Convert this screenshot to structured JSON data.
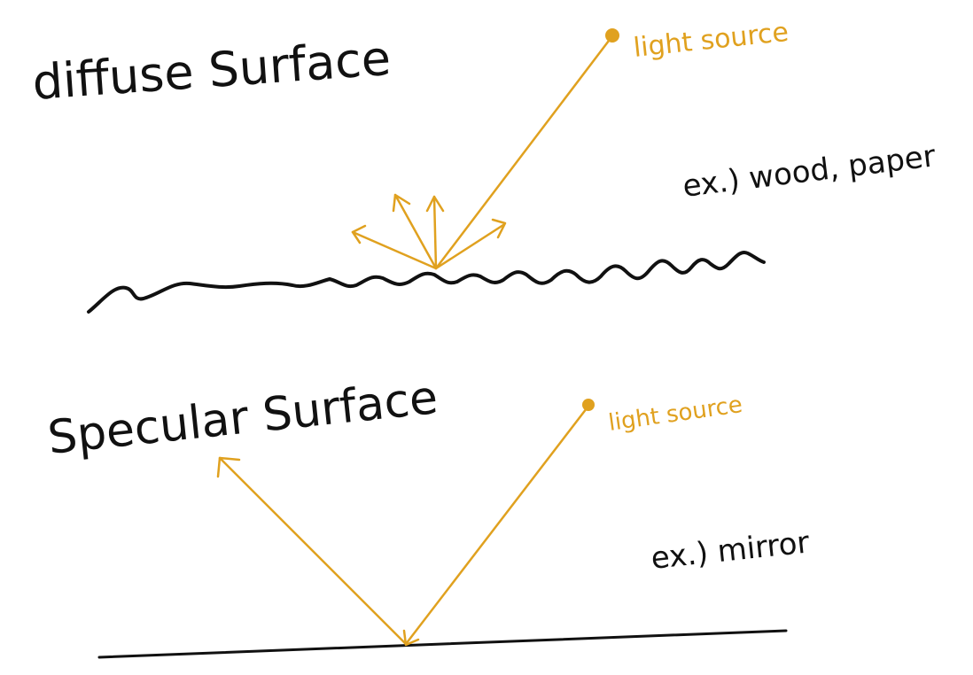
{
  "colors": {
    "ink": "#111111",
    "accent": "#e0a11f",
    "background": "#ffffff"
  },
  "diffuse": {
    "title": "diffuse Surface",
    "light_label": "light source",
    "example": "ex.) wood, paper"
  },
  "specular": {
    "title": "Specular Surface",
    "light_label": "light source",
    "example": "ex.) mirror"
  }
}
